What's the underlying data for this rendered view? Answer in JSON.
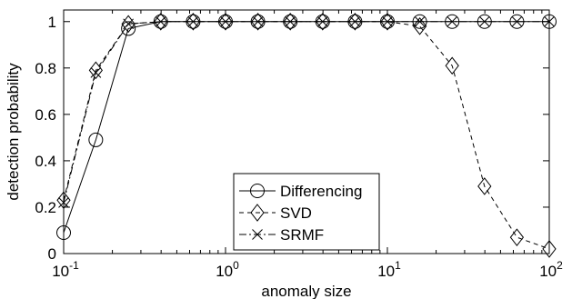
{
  "chart_data": {
    "type": "line",
    "title": "",
    "xlabel": "anomaly size",
    "ylabel": "detection probability",
    "xscale": "log",
    "xlim": [
      0.1,
      100
    ],
    "ylim": [
      0,
      1.05
    ],
    "grid": false,
    "legend_position": "bottom-center",
    "x_ticks": [
      {
        "value": 0.1,
        "base": "10",
        "exp": "-1"
      },
      {
        "value": 1,
        "base": "10",
        "exp": "0"
      },
      {
        "value": 10,
        "base": "10",
        "exp": "1"
      },
      {
        "value": 100,
        "base": "10",
        "exp": "2"
      }
    ],
    "y_ticks": [
      {
        "value": 0,
        "label": "0"
      },
      {
        "value": 0.2,
        "label": "0.2"
      },
      {
        "value": 0.4,
        "label": "0.4"
      },
      {
        "value": 0.6,
        "label": "0.6"
      },
      {
        "value": 0.8,
        "label": "0.8"
      },
      {
        "value": 1,
        "label": "1"
      }
    ],
    "x": [
      0.1,
      0.158,
      0.251,
      0.398,
      0.631,
      1.0,
      1.585,
      2.512,
      3.981,
      6.31,
      10.0,
      15.85,
      25.12,
      39.81,
      63.1,
      100.0
    ],
    "series": [
      {
        "name": "Differencing",
        "marker": "circle",
        "line": "solid",
        "values": [
          0.09,
          0.49,
          0.97,
          1,
          1,
          1,
          1,
          1,
          1,
          1,
          1,
          1,
          1,
          1,
          1,
          1
        ]
      },
      {
        "name": "SVD",
        "marker": "diamond",
        "line": "dashed",
        "values": [
          0.23,
          0.79,
          0.99,
          1,
          1,
          1,
          1,
          1,
          1,
          1,
          1,
          0.98,
          0.81,
          0.29,
          0.07,
          0.02
        ]
      },
      {
        "name": "SRMF",
        "marker": "x",
        "line": "dashdot",
        "values": [
          0.22,
          0.78,
          0.99,
          1,
          1,
          1,
          1,
          1,
          1,
          1,
          1,
          1,
          1,
          1,
          1,
          1
        ]
      }
    ]
  }
}
